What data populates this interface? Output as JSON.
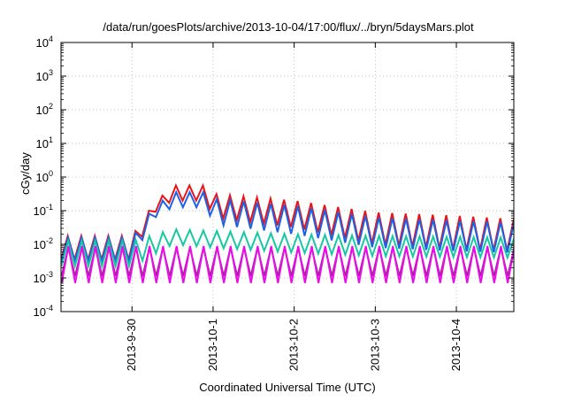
{
  "chart_data": {
    "type": "line",
    "title": "/data/run/goesPlots/archive/2013-10-04/17:00/flux/../bryn/5daysMars.plot",
    "xlabel": "Coordinated Universal Time (UTC)",
    "ylabel": "cGy/day",
    "yscale": "log",
    "ylim_exponents": [
      -4,
      4
    ],
    "y_ticks": [
      {
        "base": "10",
        "exp": "-4"
      },
      {
        "base": "10",
        "exp": "-3"
      },
      {
        "base": "10",
        "exp": "-2"
      },
      {
        "base": "10",
        "exp": "-1"
      },
      {
        "base": "10",
        "exp": "0"
      },
      {
        "base": "10",
        "exp": "1"
      },
      {
        "base": "10",
        "exp": "2"
      },
      {
        "base": "10",
        "exp": "3"
      },
      {
        "base": "10",
        "exp": "4"
      }
    ],
    "xlim": [
      "2013-09-29T03:00",
      "2013-10-04T17:00"
    ],
    "x_ticks": [
      "2013-9-30",
      "2013-10-1",
      "2013-10-2",
      "2013-10-3",
      "2013-10-4"
    ],
    "grid": true,
    "legend": false,
    "oscillation_period_hours": 4,
    "series_colors": [
      "#e8141a",
      "#1c62e6",
      "#18c8a4",
      "#a22494",
      "#e80ee8"
    ],
    "series_envelopes_log10": [
      {
        "color": "#e8141a",
        "points": [
          [
            "2013-09-29T03:00",
            -2.45,
            -1.75
          ],
          [
            "2013-09-30T00:00",
            -2.45,
            -1.75
          ],
          [
            "2013-09-30T06:00",
            -1.1,
            -0.85
          ],
          [
            "2013-09-30T12:00",
            -0.7,
            -0.25
          ],
          [
            "2013-09-30T22:00",
            -0.7,
            -0.25
          ],
          [
            "2013-10-01T00:00",
            -1.2,
            -0.5
          ],
          [
            "2013-10-02T00:00",
            -1.5,
            -0.7
          ],
          [
            "2013-10-03T00:00",
            -2.0,
            -1.05
          ],
          [
            "2013-10-04T00:00",
            -2.15,
            -1.15
          ],
          [
            "2013-10-04T17:00",
            -2.2,
            -1.25
          ]
        ]
      },
      {
        "color": "#1c62e6",
        "points": [
          [
            "2013-09-29T03:00",
            -2.5,
            -1.8
          ],
          [
            "2013-09-30T00:00",
            -2.5,
            -1.8
          ],
          [
            "2013-09-30T06:00",
            -1.25,
            -0.95
          ],
          [
            "2013-09-30T12:00",
            -0.9,
            -0.45
          ],
          [
            "2013-09-30T22:00",
            -0.9,
            -0.45
          ],
          [
            "2013-10-01T00:00",
            -1.4,
            -0.65
          ],
          [
            "2013-10-02T00:00",
            -1.7,
            -0.85
          ],
          [
            "2013-10-03T00:00",
            -2.1,
            -1.2
          ],
          [
            "2013-10-04T00:00",
            -2.2,
            -1.3
          ],
          [
            "2013-10-04T17:00",
            -2.25,
            -1.35
          ]
        ]
      },
      {
        "color": "#18c8a4",
        "points": [
          [
            "2013-09-29T03:00",
            -2.65,
            -1.9
          ],
          [
            "2013-09-30T00:00",
            -2.65,
            -1.9
          ],
          [
            "2013-09-30T12:00",
            -2.0,
            -1.55
          ],
          [
            "2013-10-01T00:00",
            -2.1,
            -1.6
          ],
          [
            "2013-10-02T00:00",
            -2.25,
            -1.7
          ],
          [
            "2013-10-03T00:00",
            -2.35,
            -1.75
          ],
          [
            "2013-10-04T17:00",
            -2.4,
            -1.8
          ]
        ]
      },
      {
        "color": "#a22494",
        "points": [
          [
            "2013-09-29T03:00",
            -2.95,
            -2.1
          ],
          [
            "2013-10-04T17:00",
            -2.95,
            -2.1
          ]
        ]
      },
      {
        "color": "#e80ee8",
        "points": [
          [
            "2013-09-29T03:00",
            -3.15,
            -2.05
          ],
          [
            "2013-10-04T17:00",
            -3.15,
            -2.05
          ]
        ]
      }
    ]
  }
}
